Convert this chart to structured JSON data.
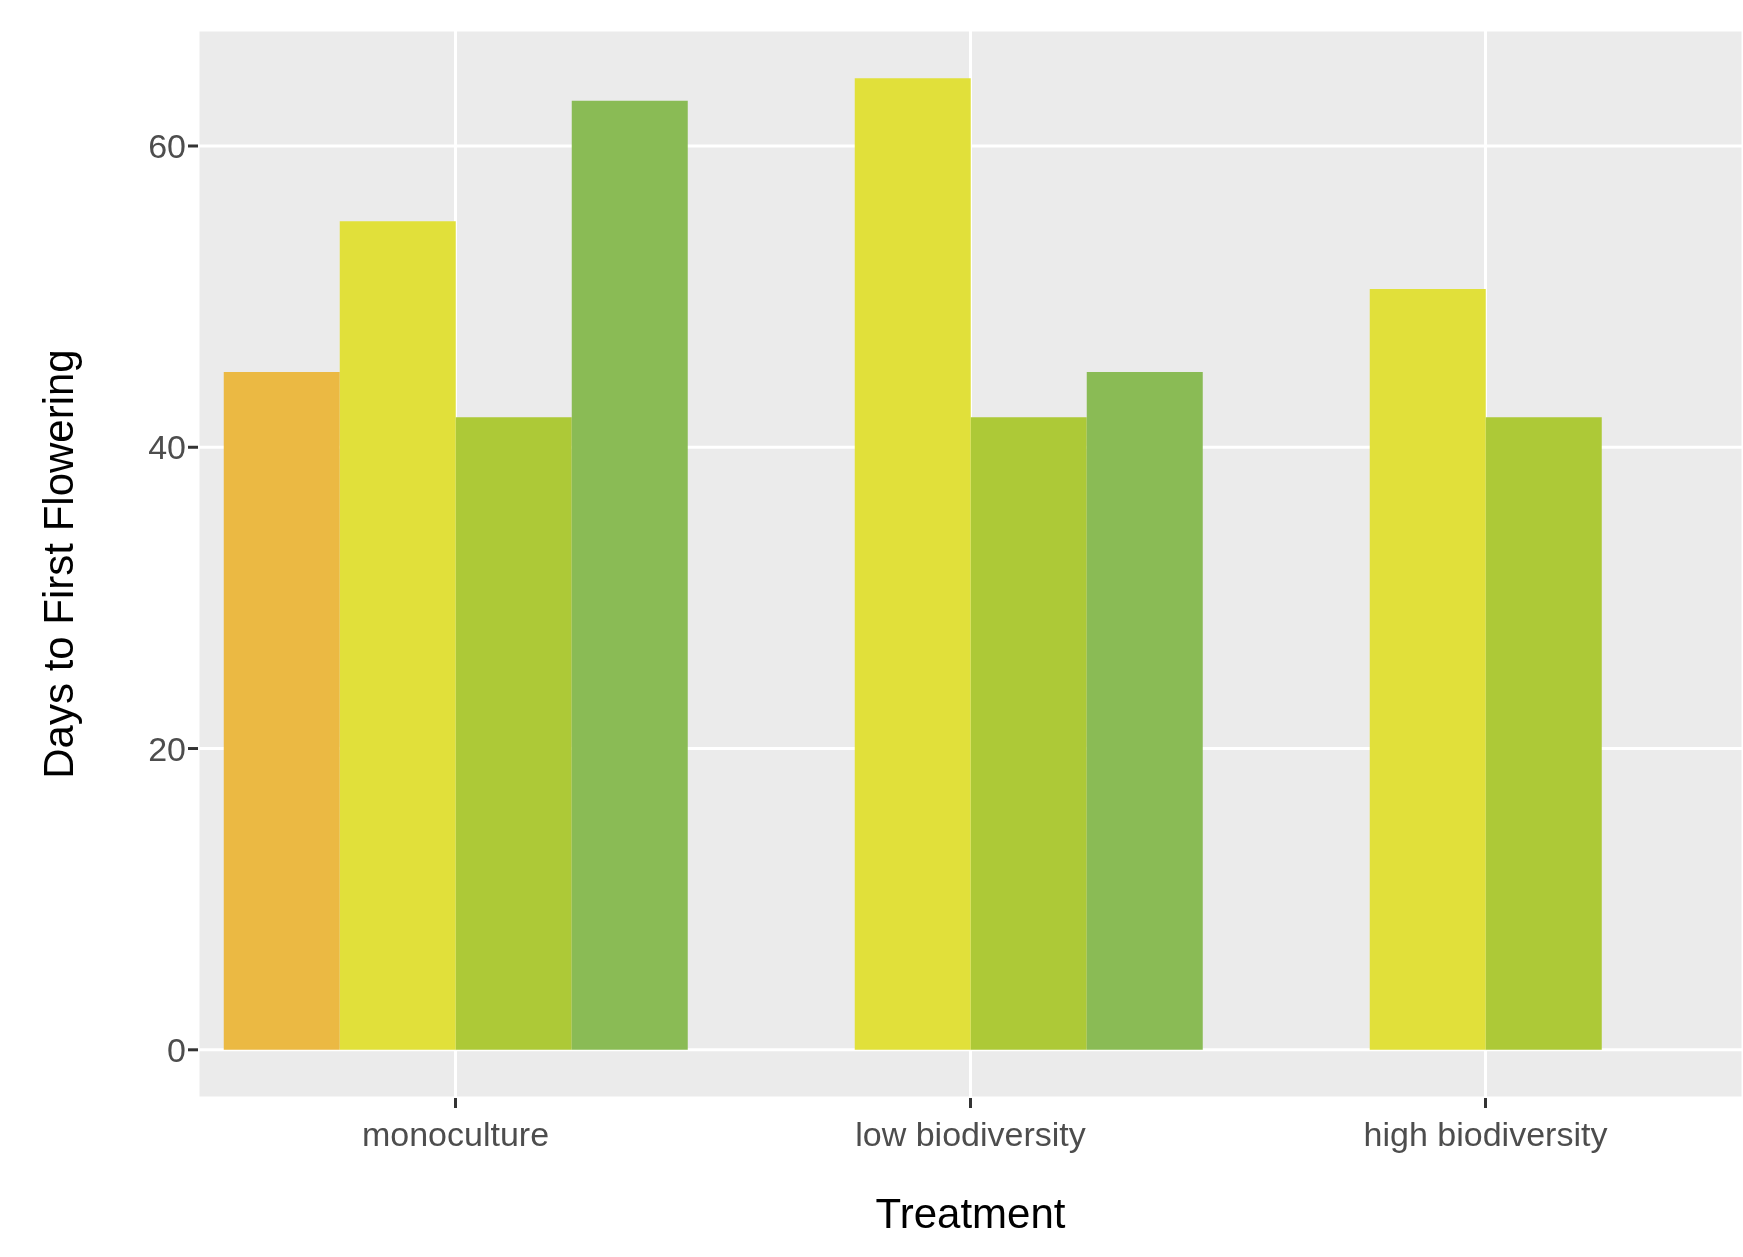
{
  "chart_data": {
    "type": "bar",
    "xlabel": "Treatment",
    "ylabel": "Days to First Flowering",
    "categories": [
      "monoculture",
      "low biodiversity",
      "high biodiversity"
    ],
    "series": [
      {
        "color": "#ebb943",
        "values": [
          45,
          0,
          0
        ]
      },
      {
        "color": "#e1e03a",
        "values": [
          55,
          64.5,
          50.5
        ]
      },
      {
        "color": "#adc937",
        "values": [
          42,
          42,
          42
        ]
      },
      {
        "color": "#8abb55",
        "values": [
          63,
          45,
          0
        ]
      }
    ],
    "ylim": [
      -3.2,
      67.7
    ],
    "yticks": [
      0,
      20,
      40,
      60
    ],
    "grid": true,
    "legend": false
  }
}
